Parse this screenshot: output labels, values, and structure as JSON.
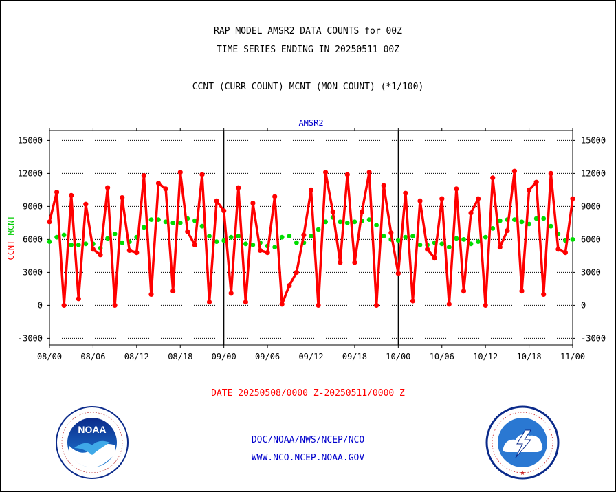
{
  "header": {
    "title_line1": "RAP MODEL AMSR2 DATA COUNTS for 00Z",
    "title_line2": "TIME SERIES ENDING IN 20250511 00Z",
    "subtitle": "CCNT (CURR COUNT) MCNT (MON COUNT) (*1/100)"
  },
  "footer": {
    "date_range": "DATE 20250508/0000 Z-20250511/0000 Z",
    "org_line": "DOC/NOAA/NWS/NCEP/NCO",
    "url_line": "WWW.NCO.NCEP.NOAA.GOV"
  },
  "logos": {
    "left": "noaa-logo",
    "right": "national-weather-service-logo"
  },
  "chart_data": {
    "type": "line",
    "title": "AMSR2",
    "ylabel_parts": [
      {
        "text": "CCNT",
        "color": "#ff0000"
      },
      {
        "text": "MCNT",
        "color": "#00cc00"
      }
    ],
    "ylim": [
      -3600,
      15900
    ],
    "yticks": [
      -3000,
      0,
      3000,
      6000,
      9000,
      12000,
      15000
    ],
    "xlim": [
      0,
      72
    ],
    "xticks": [
      0,
      6,
      12,
      18,
      24,
      30,
      36,
      42,
      48,
      54,
      60,
      66,
      72
    ],
    "xtick_labels": [
      "08/00",
      "08/06",
      "08/12",
      "08/18",
      "09/00",
      "09/06",
      "09/12",
      "09/18",
      "10/00",
      "10/06",
      "10/12",
      "10/18",
      "11/00"
    ],
    "day_dividers": [
      24,
      48
    ],
    "grid": true,
    "series": [
      {
        "name": "CCNT",
        "color": "#ff0000",
        "values": [
          [
            0,
            7600
          ],
          [
            1,
            10300
          ],
          [
            2,
            0
          ],
          [
            3,
            10000
          ],
          [
            4,
            600
          ],
          [
            5,
            9200
          ],
          [
            6,
            5100
          ],
          [
            7,
            4600
          ],
          [
            8,
            10700
          ],
          [
            9,
            0
          ],
          [
            10,
            9800
          ],
          [
            11,
            5000
          ],
          [
            12,
            4800
          ],
          [
            13,
            11800
          ],
          [
            14,
            1000
          ],
          [
            15,
            11100
          ],
          [
            16,
            10600
          ],
          [
            17,
            1300
          ],
          [
            18,
            12100
          ],
          [
            19,
            6700
          ],
          [
            20,
            5500
          ],
          [
            21,
            11900
          ],
          [
            22,
            300
          ],
          [
            23,
            9500
          ],
          [
            24,
            8600
          ],
          [
            25,
            1100
          ],
          [
            26,
            10700
          ],
          [
            27,
            300
          ],
          [
            28,
            9300
          ],
          [
            29,
            5000
          ],
          [
            30,
            4800
          ],
          [
            31,
            9900
          ],
          [
            32,
            100
          ],
          [
            33,
            1800
          ],
          [
            34,
            3000
          ],
          [
            35,
            6400
          ],
          [
            36,
            10500
          ],
          [
            37,
            0
          ],
          [
            38,
            12100
          ],
          [
            39,
            8500
          ],
          [
            40,
            3900
          ],
          [
            41,
            11900
          ],
          [
            42,
            3900
          ],
          [
            43,
            8500
          ],
          [
            44,
            12100
          ],
          [
            45,
            0
          ],
          [
            46,
            10900
          ],
          [
            47,
            6600
          ],
          [
            48,
            2900
          ],
          [
            49,
            10200
          ],
          [
            50,
            400
          ],
          [
            51,
            9500
          ],
          [
            52,
            5100
          ],
          [
            53,
            4300
          ],
          [
            54,
            9700
          ],
          [
            55,
            100
          ],
          [
            56,
            10600
          ],
          [
            57,
            1300
          ],
          [
            58,
            8400
          ],
          [
            59,
            9700
          ],
          [
            60,
            0
          ],
          [
            61,
            11600
          ],
          [
            62,
            5300
          ],
          [
            63,
            6800
          ],
          [
            64,
            12200
          ],
          [
            65,
            1300
          ],
          [
            66,
            10500
          ],
          [
            67,
            11200
          ],
          [
            68,
            1000
          ],
          [
            69,
            12000
          ],
          [
            70,
            5100
          ],
          [
            71,
            4800
          ],
          [
            72,
            9700
          ]
        ]
      },
      {
        "name": "MCNT",
        "color": "#00dd00",
        "values": [
          [
            0,
            5800
          ],
          [
            1,
            6200
          ],
          [
            2,
            6400
          ],
          [
            3,
            5500
          ],
          [
            4,
            5500
          ],
          [
            5,
            5600
          ],
          [
            6,
            5600
          ],
          [
            7,
            5200
          ],
          [
            8,
            6100
          ],
          [
            9,
            6500
          ],
          [
            10,
            5700
          ],
          [
            11,
            5800
          ],
          [
            12,
            6200
          ],
          [
            13,
            7100
          ],
          [
            14,
            7800
          ],
          [
            15,
            7800
          ],
          [
            16,
            7600
          ],
          [
            17,
            7500
          ],
          [
            18,
            7500
          ],
          [
            19,
            7900
          ],
          [
            20,
            7700
          ],
          [
            21,
            7200
          ],
          [
            22,
            6300
          ],
          [
            23,
            5800
          ],
          [
            24,
            5900
          ],
          [
            25,
            6200
          ],
          [
            26,
            6300
          ],
          [
            27,
            5600
          ],
          [
            28,
            5500
          ],
          [
            29,
            5700
          ],
          [
            30,
            5400
          ],
          [
            31,
            5300
          ],
          [
            32,
            6200
          ],
          [
            33,
            6300
          ],
          [
            34,
            5700
          ],
          [
            35,
            5700
          ],
          [
            36,
            6300
          ],
          [
            37,
            6900
          ],
          [
            38,
            7600
          ],
          [
            39,
            8000
          ],
          [
            40,
            7600
          ],
          [
            41,
            7500
          ],
          [
            42,
            7600
          ],
          [
            43,
            7700
          ],
          [
            44,
            7800
          ],
          [
            45,
            7300
          ],
          [
            46,
            6300
          ],
          [
            47,
            6000
          ],
          [
            48,
            5900
          ],
          [
            49,
            6200
          ],
          [
            50,
            6300
          ],
          [
            51,
            5500
          ],
          [
            52,
            5500
          ],
          [
            53,
            5700
          ],
          [
            54,
            5600
          ],
          [
            55,
            5300
          ],
          [
            56,
            6100
          ],
          [
            57,
            6000
          ],
          [
            58,
            5600
          ],
          [
            59,
            5800
          ],
          [
            60,
            6200
          ],
          [
            61,
            7000
          ],
          [
            62,
            7700
          ],
          [
            63,
            7800
          ],
          [
            64,
            7800
          ],
          [
            65,
            7600
          ],
          [
            66,
            7400
          ],
          [
            67,
            7900
          ],
          [
            68,
            7900
          ],
          [
            69,
            7200
          ],
          [
            70,
            6500
          ],
          [
            71,
            5900
          ],
          [
            72,
            6000
          ]
        ]
      }
    ]
  }
}
